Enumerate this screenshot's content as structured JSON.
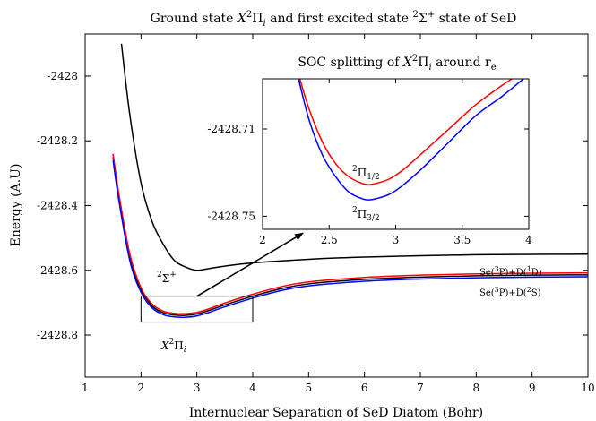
{
  "chart_data": [
    {
      "type": "line",
      "panel": "main",
      "title": "Ground state X²Πᵢ and first excited state ²Σ⁺ state of SeD",
      "title_parts": [
        "Ground state ",
        "X",
        "2",
        "Π",
        "i",
        " and first excited state ",
        "2",
        "Σ",
        "+",
        " state of SeD"
      ],
      "xlabel": "Internuclear Separation of SeD Diatom (Bohr)",
      "ylabel": "Energy (A.U)",
      "xlim": [
        1,
        10
      ],
      "ylim": [
        -2428.93,
        -2427.87
      ],
      "x_ticks": [
        1,
        2,
        3,
        4,
        5,
        6,
        7,
        8,
        9,
        10
      ],
      "y_ticks": [
        -2428,
        -2428.2,
        -2428.4,
        -2428.6,
        -2428.8
      ],
      "y_tick_labels": [
        "-2428",
        "-2428.2",
        "-2428.4",
        "-2428.6",
        "-2428.8"
      ],
      "grid": false,
      "series": [
        {
          "color": "#000000",
          "x": [
            1.65,
            1.8,
            2.0,
            2.2,
            2.4,
            2.6,
            2.8,
            3.0,
            3.2,
            3.5,
            4.0,
            5.0,
            6.0,
            7.0,
            8.0,
            9.0,
            10.0
          ],
          "y": [
            -2427.9,
            -2428.12,
            -2428.33,
            -2428.45,
            -2428.52,
            -2428.57,
            -2428.59,
            -2428.6,
            -2428.595,
            -2428.587,
            -2428.577,
            -2428.566,
            -2428.559,
            -2428.555,
            -2428.552,
            -2428.551,
            -2428.55
          ]
        },
        {
          "color": "#000000",
          "x": [
            1.5,
            1.6,
            1.8,
            2.0,
            2.2,
            2.4,
            2.6,
            2.8,
            3.0,
            3.2,
            3.5,
            4.0,
            4.5,
            5.0,
            6.0,
            7.0,
            8.0,
            9.0,
            10.0
          ],
          "y": [
            -2428.25,
            -2428.37,
            -2428.56,
            -2428.66,
            -2428.71,
            -2428.731,
            -2428.738,
            -2428.739,
            -2428.735,
            -2428.725,
            -2428.707,
            -2428.68,
            -2428.657,
            -2428.642,
            -2428.628,
            -2428.621,
            -2428.617,
            -2428.615,
            -2428.614
          ]
        },
        {
          "color": "#ff0000",
          "x": [
            1.5,
            1.6,
            1.8,
            2.0,
            2.2,
            2.4,
            2.6,
            2.8,
            3.0,
            3.2,
            3.5,
            4.0,
            4.5,
            5.0,
            6.0,
            7.0,
            8.0,
            9.0,
            10.0
          ],
          "y": [
            -2428.24,
            -2428.36,
            -2428.55,
            -2428.654,
            -2428.704,
            -2428.726,
            -2428.733,
            -2428.734,
            -2428.73,
            -2428.72,
            -2428.701,
            -2428.674,
            -2428.651,
            -2428.636,
            -2428.622,
            -2428.615,
            -2428.611,
            -2428.609,
            -2428.608
          ]
        },
        {
          "color": "#0000ff",
          "x": [
            1.5,
            1.6,
            1.8,
            2.0,
            2.2,
            2.4,
            2.6,
            2.8,
            3.0,
            3.2,
            3.5,
            4.0,
            4.5,
            5.0,
            6.0,
            7.0,
            8.0,
            9.0,
            10.0
          ],
          "y": [
            -2428.26,
            -2428.38,
            -2428.57,
            -2428.668,
            -2428.716,
            -2428.737,
            -2428.744,
            -2428.745,
            -2428.741,
            -2428.731,
            -2428.713,
            -2428.686,
            -2428.663,
            -2428.648,
            -2428.634,
            -2428.627,
            -2428.623,
            -2428.621,
            -2428.62
          ]
        }
      ],
      "annotations": {
        "sigma_label": {
          "sup": "2",
          "base": "Σ",
          "sup2": "+"
        },
        "pi_label": {
          "base": "X",
          "sup": "2",
          "greek": "Π",
          "sub": "i"
        },
        "asymptote_upper": {
          "a": "Se(",
          "a_sup": "3",
          "b": "P)+D(",
          "b_sup": "1",
          "c": "D)"
        },
        "asymptote_lower": {
          "a": "Se(",
          "a_sup": "3",
          "b": "P)+D(",
          "b_sup": "2",
          "c": "S)"
        }
      },
      "highlight_box": {
        "x": [
          2,
          4
        ],
        "y": [
          -2428.68,
          -2428.76
        ]
      },
      "arrow": {
        "from": [
          3.0,
          -2428.68
        ],
        "to": [
          4.9,
          -2428.485
        ]
      }
    },
    {
      "type": "line",
      "panel": "inset",
      "title": "SOC splitting of X²Πᵢ around rₑ",
      "title_parts": {
        "a": "SOC splitting of ",
        "b": "X",
        "sup": "2",
        "greek": "Π",
        "sub": "i",
        "c": " around r",
        "sub2": "e"
      },
      "xlim": [
        2,
        4
      ],
      "ylim": [
        -2428.756,
        -2428.687
      ],
      "x_ticks": [
        2,
        2.5,
        3,
        3.5,
        4
      ],
      "x_tick_labels": [
        "2",
        "2.5",
        "3",
        "3.5",
        "4"
      ],
      "y_ticks": [
        -2428.71,
        -2428.75
      ],
      "y_tick_labels": [
        "-2428.71",
        "-2428.75"
      ],
      "grid": false,
      "series": [
        {
          "name": "²Π₁/₂",
          "color": "#ff0000",
          "x": [
            2.28,
            2.35,
            2.45,
            2.55,
            2.65,
            2.75,
            2.8,
            2.85,
            2.95,
            3.05,
            3.2,
            3.4,
            3.6,
            3.8,
            3.95
          ],
          "y": [
            -2428.687,
            -2428.701,
            -2428.716,
            -2428.726,
            -2428.732,
            -2428.735,
            -2428.7355,
            -2428.735,
            -2428.733,
            -2428.729,
            -2428.721,
            -2428.71,
            -2428.699,
            -2428.69,
            -2428.684
          ]
        },
        {
          "name": "²Π₃/₂",
          "color": "#0000ff",
          "x": [
            2.27,
            2.35,
            2.45,
            2.55,
            2.65,
            2.75,
            2.8,
            2.85,
            2.95,
            3.05,
            3.2,
            3.4,
            3.6,
            3.8,
            3.96
          ],
          "y": [
            -2428.687,
            -2428.706,
            -2428.722,
            -2428.732,
            -2428.739,
            -2428.742,
            -2428.7425,
            -2428.742,
            -2428.74,
            -2428.736,
            -2428.728,
            -2428.716,
            -2428.704,
            -2428.695,
            -2428.687
          ]
        }
      ],
      "annotations": {
        "pi_half": {
          "sup": "2",
          "base": "Π",
          "sub": "1/2"
        },
        "pi_three_half": {
          "sup": "2",
          "base": "Π",
          "sub": "3/2"
        }
      }
    }
  ]
}
